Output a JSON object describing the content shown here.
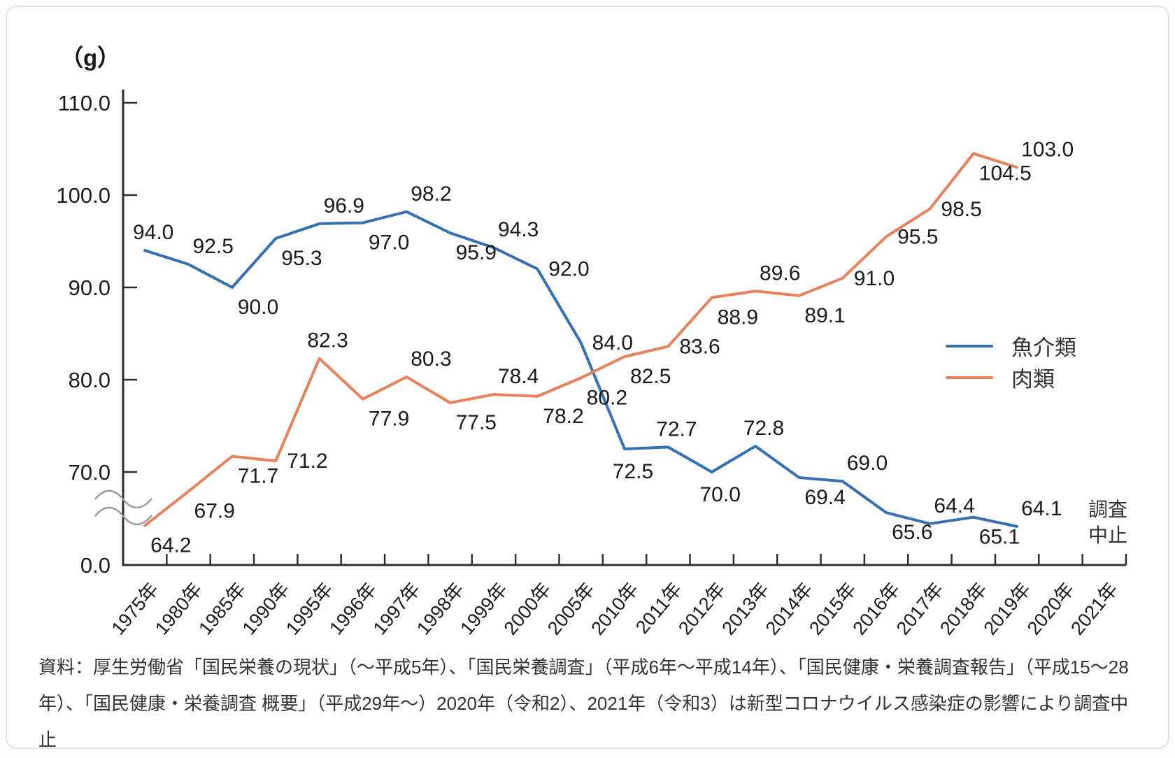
{
  "unit_label": "（g）",
  "cancel_note_lines": [
    "調査",
    "中止"
  ],
  "source": {
    "lines": [
      "資料：厚生労働省「国民栄養の現状」（～平成5年）、「国民栄養調査」（平成6年～平成14年）、「国民健康・栄養調査報告」（平成15～28",
      "年）、「国民健康・栄養調査 概要」（平成29年～）2020年（令和2）、2021年（令和3）は新型コロナウイルス感染症の影響により調査中止"
    ]
  },
  "chart_data": {
    "type": "line",
    "unit": "g",
    "title": "",
    "ylabel": "（g）",
    "legend_position": "right",
    "grid": false,
    "categories": [
      "1975年",
      "1980年",
      "1985年",
      "1990年",
      "1995年",
      "1996年",
      "1997年",
      "1998年",
      "1999年",
      "2000年",
      "2005年",
      "2010年",
      "2011年",
      "2012年",
      "2013年",
      "2014年",
      "2015年",
      "2016年",
      "2017年",
      "2018年",
      "2019年",
      "2020年",
      "2021年"
    ],
    "series": [
      {
        "name": "魚介類",
        "color": "#3570b4",
        "values": [
          94.0,
          92.5,
          90.0,
          95.3,
          96.9,
          97.0,
          98.2,
          95.9,
          94.3,
          92.0,
          84.0,
          72.5,
          72.7,
          70.0,
          72.8,
          69.4,
          69.0,
          65.6,
          64.4,
          65.1,
          64.1,
          null,
          null
        ],
        "label_pos": [
          "a",
          "ar",
          "br",
          "br",
          "ar",
          "br",
          "ar",
          "br",
          "ar",
          "r",
          "r",
          "b",
          "a",
          "b",
          "a",
          "br",
          "ar",
          "br",
          "ar",
          "br",
          "ar"
        ]
      },
      {
        "name": "肉類",
        "color": "#e8825a",
        "values": [
          64.2,
          67.9,
          71.7,
          71.2,
          82.3,
          77.9,
          80.3,
          77.5,
          78.4,
          78.2,
          80.2,
          82.5,
          83.6,
          88.9,
          89.6,
          89.1,
          91.0,
          95.5,
          98.5,
          104.5,
          103.0,
          null,
          null
        ],
        "label_pos": [
          "br",
          "br",
          "br",
          "r",
          "a",
          "br",
          "ar",
          "br",
          "ar",
          "br",
          "br",
          "br",
          "r",
          "br",
          "ar",
          "br",
          "r",
          "r",
          "r",
          "br",
          "ar"
        ]
      }
    ],
    "y_axis": {
      "tick_labels": [
        "110.0",
        "100.0",
        "90.0",
        "80.0",
        "70.0"
      ],
      "ticks": [
        110,
        100,
        90,
        80,
        70
      ],
      "origin_label": "0.0",
      "axis_break": true
    },
    "ylim": [
      0,
      110
    ],
    "annotation_2020_2021": "調査中止"
  }
}
